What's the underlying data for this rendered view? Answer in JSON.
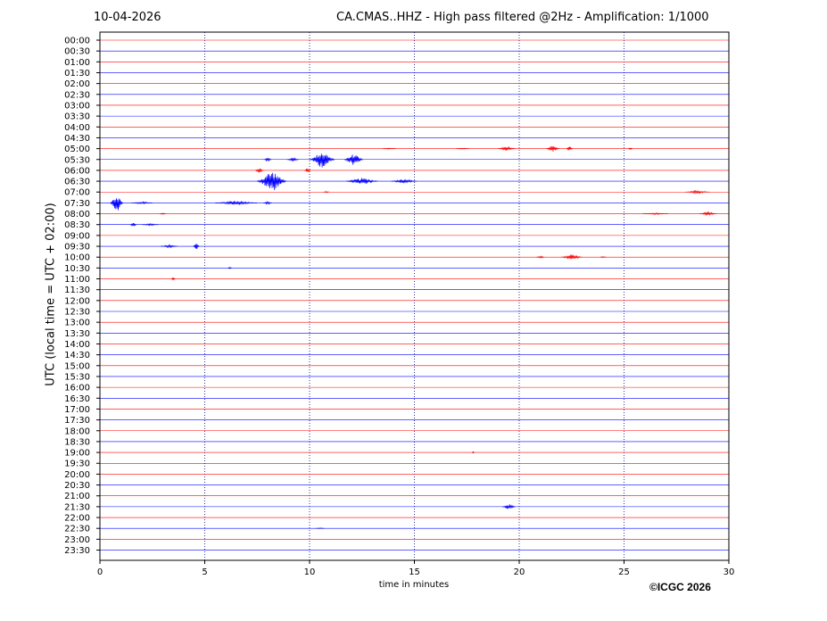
{
  "header": {
    "date": "10-04-2026",
    "title": "CA.CMAS..HHZ - High pass filtered @2Hz - Amplification: 1/1000"
  },
  "footer": {
    "copyright": "©ICGC 2026"
  },
  "chart_data": {
    "type": "line",
    "title": "CA.CMAS..HHZ - High pass filtered @2Hz - Amplification: 1/1000",
    "xlabel": "time in minutes",
    "ylabel": "UTC (local time = UTC + 02:00)",
    "xlim": [
      0,
      30
    ],
    "x_ticks": [
      0,
      5,
      10,
      15,
      20,
      25,
      30
    ],
    "grid": "vertical dotted at x ticks",
    "trace_colors": [
      "#ff0000",
      "#0000ff"
    ],
    "traces": [
      {
        "label": "00:00",
        "events": []
      },
      {
        "label": "00:30",
        "events": []
      },
      {
        "label": "01:00",
        "events": []
      },
      {
        "label": "01:30",
        "events": []
      },
      {
        "label": "02:00",
        "events": []
      },
      {
        "label": "02:30",
        "events": []
      },
      {
        "label": "03:00",
        "events": []
      },
      {
        "label": "03:30",
        "events": []
      },
      {
        "label": "04:00",
        "events": []
      },
      {
        "label": "04:30",
        "events": []
      },
      {
        "label": "05:00",
        "events": [
          [
            13.8,
            0.6,
            0.5
          ],
          [
            17.3,
            0.6,
            0.6
          ],
          [
            19.4,
            0.8,
            2.5
          ],
          [
            21.6,
            0.6,
            3.5
          ],
          [
            22.4,
            0.3,
            2.5
          ],
          [
            25.3,
            0.2,
            0.8
          ]
        ]
      },
      {
        "label": "05:30",
        "events": [
          [
            8.0,
            0.4,
            2
          ],
          [
            9.2,
            0.6,
            2
          ],
          [
            10.6,
            1.2,
            9
          ],
          [
            12.1,
            0.9,
            6
          ]
        ]
      },
      {
        "label": "06:00",
        "events": [
          [
            7.6,
            0.4,
            2.5
          ],
          [
            9.9,
            0.3,
            2
          ]
        ]
      },
      {
        "label": "06:30",
        "events": [
          [
            8.2,
            1.4,
            11
          ],
          [
            12.5,
            1.5,
            3.5
          ],
          [
            14.5,
            1.2,
            2.5
          ]
        ]
      },
      {
        "label": "07:00",
        "events": [
          [
            10.8,
            0.3,
            0.8
          ],
          [
            28.5,
            1.2,
            1.5
          ]
        ]
      },
      {
        "label": "07:30",
        "events": [
          [
            0.8,
            0.6,
            10
          ],
          [
            2.0,
            1.0,
            1.2
          ],
          [
            6.5,
            2.0,
            2
          ],
          [
            8.0,
            0.4,
            1.5
          ]
        ]
      },
      {
        "label": "08:00",
        "events": [
          [
            3.0,
            0.3,
            0.6
          ],
          [
            26.5,
            1.2,
            0.8
          ],
          [
            29.0,
            0.8,
            2
          ]
        ]
      },
      {
        "label": "08:30",
        "events": [
          [
            1.6,
            0.3,
            2.5
          ],
          [
            2.4,
            0.8,
            1.2
          ]
        ]
      },
      {
        "label": "09:00",
        "events": []
      },
      {
        "label": "09:30",
        "events": [
          [
            3.3,
            0.8,
            1.5
          ],
          [
            4.6,
            0.3,
            3.5
          ]
        ]
      },
      {
        "label": "10:00",
        "events": [
          [
            21.0,
            0.4,
            1.5
          ],
          [
            22.5,
            1.0,
            3
          ],
          [
            24.0,
            0.3,
            0.8
          ]
        ]
      },
      {
        "label": "10:30",
        "events": [
          [
            6.2,
            0.2,
            0.6
          ]
        ]
      },
      {
        "label": "11:00",
        "events": [
          [
            3.5,
            0.2,
            1.2
          ]
        ]
      },
      {
        "label": "11:30",
        "events": []
      },
      {
        "label": "12:00",
        "events": []
      },
      {
        "label": "12:30",
        "events": []
      },
      {
        "label": "13:00",
        "events": []
      },
      {
        "label": "13:30",
        "events": []
      },
      {
        "label": "14:00",
        "events": []
      },
      {
        "label": "14:30",
        "events": []
      },
      {
        "label": "15:00",
        "events": []
      },
      {
        "label": "15:30",
        "events": []
      },
      {
        "label": "16:00",
        "events": []
      },
      {
        "label": "16:30",
        "events": []
      },
      {
        "label": "17:00",
        "events": []
      },
      {
        "label": "17:30",
        "events": []
      },
      {
        "label": "18:00",
        "events": []
      },
      {
        "label": "18:30",
        "events": []
      },
      {
        "label": "19:00",
        "events": [
          [
            17.8,
            0.1,
            0.6
          ]
        ]
      },
      {
        "label": "19:30",
        "events": []
      },
      {
        "label": "20:00",
        "events": []
      },
      {
        "label": "20:30",
        "events": []
      },
      {
        "label": "21:00",
        "events": []
      },
      {
        "label": "21:30",
        "events": [
          [
            19.5,
            0.6,
            3
          ]
        ]
      },
      {
        "label": "22:00",
        "events": []
      },
      {
        "label": "22:30",
        "events": [
          [
            10.5,
            0.4,
            0.5
          ]
        ]
      },
      {
        "label": "23:00",
        "events": []
      },
      {
        "label": "23:30",
        "events": []
      }
    ]
  }
}
